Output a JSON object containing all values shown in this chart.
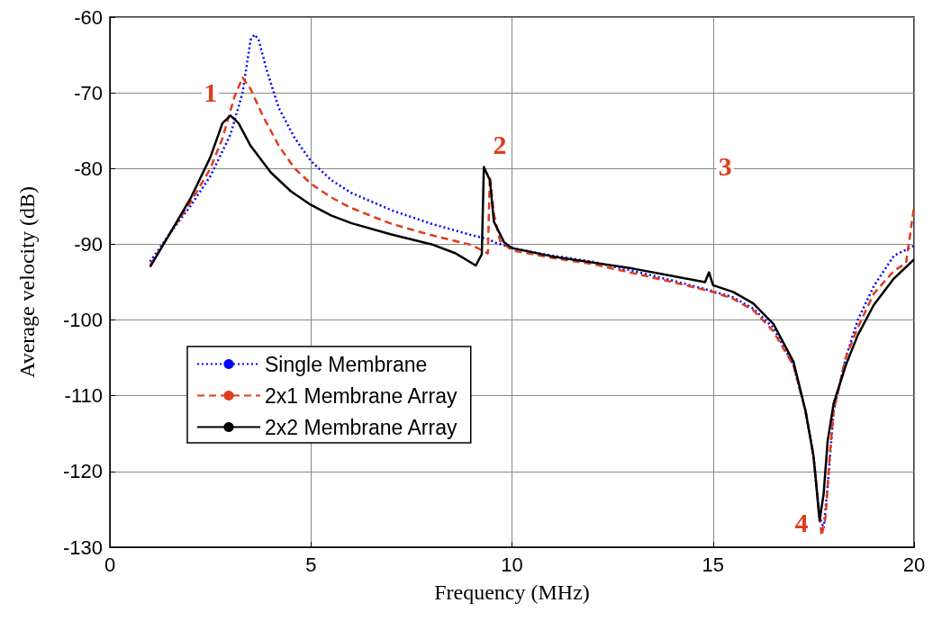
{
  "chart_data": {
    "type": "line",
    "xlabel": "Frequency (MHz)",
    "ylabel": "Average velocity (dB)",
    "xlim": [
      0,
      20
    ],
    "xticks": [
      0,
      5,
      10,
      15,
      20
    ],
    "ylim": [
      -130,
      -60
    ],
    "yticks": [
      -130,
      -120,
      -110,
      -100,
      -90,
      -80,
      -70,
      -60
    ],
    "grid": true,
    "legend": "bottom left",
    "marker": "none",
    "annotations": [
      {
        "text": "1",
        "x": 2.5,
        "y": -69.9
      },
      {
        "text": "2",
        "x": 9.7,
        "y": -76.8
      },
      {
        "text": "3",
        "x": 15.3,
        "y": -79.7
      },
      {
        "text": "4",
        "x": 17.2,
        "y": -126.7
      }
    ],
    "series": [
      {
        "name": "Single Membrane",
        "color": "#0000ff",
        "line_style": "dotted",
        "x": [
          1,
          1.5,
          2,
          2.5,
          3,
          3.3,
          3.5,
          3.6,
          3.7,
          3.9,
          4.2,
          4.6,
          5,
          5.5,
          6,
          7,
          8,
          9,
          9.4,
          9.6,
          10,
          11,
          12,
          13,
          14,
          15,
          15.5,
          16,
          16.5,
          17,
          17.3,
          17.5,
          17.65,
          17.75,
          17.85,
          18,
          18.3,
          18.6,
          19,
          19.5,
          20
        ],
        "values": [
          -92.3,
          -88.5,
          -85,
          -81,
          -75.5,
          -70,
          -63,
          -62.3,
          -63,
          -67,
          -72,
          -76,
          -79,
          -81.5,
          -83.2,
          -85.5,
          -87.3,
          -88.8,
          -89.3,
          -89.8,
          -90.5,
          -91.5,
          -92.3,
          -93.5,
          -94.8,
          -96.2,
          -97,
          -98.5,
          -101,
          -106,
          -112,
          -118,
          -126,
          -127.5,
          -122,
          -112,
          -105,
          -100,
          -95.5,
          -91.5,
          -90.2
        ]
      },
      {
        "name": "2x1 Membrane Array",
        "color": "#e03c1c",
        "line_style": "dashed",
        "x": [
          1,
          1.5,
          2,
          2.5,
          2.8,
          3.1,
          3.3,
          3.5,
          3.8,
          4.2,
          4.6,
          5,
          5.5,
          6,
          7,
          8,
          9,
          9.4,
          9.45,
          9.55,
          9.7,
          10,
          11,
          12,
          13,
          14,
          15,
          15.5,
          16,
          16.5,
          17,
          17.3,
          17.5,
          17.7,
          17.8,
          17.9,
          18,
          18.3,
          18.6,
          19,
          19.5,
          19.8,
          20
        ],
        "values": [
          -92.8,
          -88.5,
          -84.5,
          -80,
          -76,
          -70.5,
          -68,
          -69.5,
          -73,
          -77,
          -80,
          -82,
          -83.8,
          -85.2,
          -87.3,
          -88.8,
          -90.1,
          -91.2,
          -81,
          -86,
          -89.5,
          -90.8,
          -91.8,
          -92.6,
          -93.8,
          -95,
          -96.3,
          -97.2,
          -98.7,
          -101.5,
          -106,
          -112,
          -118,
          -128.5,
          -126,
          -118,
          -112,
          -105,
          -101,
          -96.5,
          -93.5,
          -92.5,
          -85
        ]
      },
      {
        "name": "2x2 Membrane Array",
        "color": "#000000",
        "line_style": "solid",
        "x": [
          1,
          1.5,
          2,
          2.5,
          2.8,
          3,
          3.2,
          3.5,
          4,
          4.5,
          5,
          5.5,
          6,
          7,
          8,
          8.6,
          9.1,
          9.25,
          9.3,
          9.45,
          9.55,
          9.8,
          10,
          11,
          12,
          13,
          14,
          14.8,
          14.9,
          15,
          15.5,
          16,
          16.5,
          17,
          17.3,
          17.5,
          17.65,
          17.75,
          17.85,
          18,
          18.3,
          18.6,
          19,
          19.5,
          20
        ],
        "values": [
          -93,
          -88.5,
          -84,
          -78.5,
          -74,
          -73,
          -74,
          -77,
          -80.5,
          -83,
          -84.8,
          -86.2,
          -87.2,
          -88.7,
          -90,
          -91.2,
          -92.8,
          -91.3,
          -79.8,
          -81.5,
          -87,
          -89.7,
          -90.5,
          -91.6,
          -92.4,
          -93.2,
          -94.2,
          -95,
          -93.7,
          -95.4,
          -96.3,
          -97.8,
          -100.5,
          -105.5,
          -112,
          -118,
          -126.5,
          -123,
          -116,
          -111,
          -106,
          -102,
          -98,
          -94.5,
          -92
        ]
      }
    ]
  }
}
